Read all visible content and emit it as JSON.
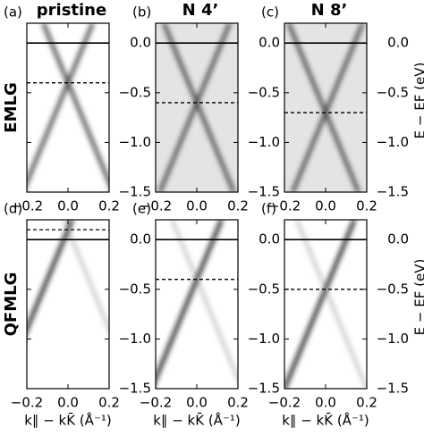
{
  "chart_data": [
    {
      "type": "arpes",
      "panel_label": "(a)",
      "title": "pristine",
      "row_label": "EMLG",
      "background": "#ffffff",
      "xlim": [
        -0.2,
        0.2
      ],
      "ylim": [
        -1.5,
        0.2
      ],
      "xticks": [
        {
          "value": -0.2,
          "label": "−0.2"
        },
        {
          "value": 0,
          "label": "0.0"
        },
        {
          "value": 0.2,
          "label": "0.2"
        }
      ],
      "yticks": [
        {
          "value": 0,
          "label": "0.0"
        },
        {
          "value": -0.5,
          "label": "−0.5"
        },
        {
          "value": -1,
          "label": "−1.0"
        },
        {
          "value": -1.5,
          "label": "−1.5"
        }
      ],
      "fermi_level": 0,
      "dirac_point": -0.4
    },
    {
      "type": "arpes",
      "panel_label": "(b)",
      "title": "N 4’",
      "background": "#e4e4e4",
      "xlim": [
        -0.2,
        0.2
      ],
      "ylim": [
        -1.5,
        0.2
      ],
      "xticks": [
        {
          "value": -0.2,
          "label": "−0.2"
        },
        {
          "value": 0,
          "label": "0.0"
        },
        {
          "value": 0.2,
          "label": "0.2"
        }
      ],
      "yticks": [
        {
          "value": 0,
          "label": "0.0"
        },
        {
          "value": -0.5,
          "label": "−0.5"
        },
        {
          "value": -1,
          "label": "−1.0"
        },
        {
          "value": -1.5,
          "label": "−1.5"
        }
      ],
      "fermi_level": 0,
      "dirac_point": -0.6
    },
    {
      "type": "arpes",
      "panel_label": "(c)",
      "title": "N 8’",
      "ylabel": "E − EF (eV)",
      "background": "#e4e4e4",
      "xlim": [
        -0.2,
        0.2
      ],
      "ylim": [
        -1.5,
        0.2
      ],
      "xticks": [
        {
          "value": -0.2,
          "label": "−0.2"
        },
        {
          "value": 0,
          "label": "0.0"
        },
        {
          "value": 0.2,
          "label": "0.2"
        }
      ],
      "yticks": [
        {
          "value": 0,
          "label": "0.0"
        },
        {
          "value": -0.5,
          "label": "−0.5"
        },
        {
          "value": -1,
          "label": "−1.0"
        },
        {
          "value": -1.5,
          "label": "−1.5"
        }
      ],
      "fermi_level": 0,
      "dirac_point": -0.7
    },
    {
      "type": "arpes",
      "panel_label": "(d)",
      "row_label": "QFMLG",
      "xlabel": "k∥ − kK̄ (Å⁻¹)",
      "background": "#ffffff",
      "xlim": [
        -0.2,
        0.2
      ],
      "ylim": [
        -1.5,
        0.2
      ],
      "xticks": [
        {
          "value": -0.2,
          "label": "−0.2"
        },
        {
          "value": 0,
          "label": "0.0"
        },
        {
          "value": 0.2,
          "label": "0.2"
        }
      ],
      "yticks": [
        {
          "value": 0,
          "label": "0.0"
        },
        {
          "value": -0.5,
          "label": "−0.5"
        },
        {
          "value": -1,
          "label": "−1.0"
        },
        {
          "value": -1.5,
          "label": "−1.5"
        }
      ],
      "fermi_level": 0,
      "dirac_point": 0.1
    },
    {
      "type": "arpes",
      "panel_label": "(e)",
      "xlabel": "k∥ − kK̄ (Å⁻¹)",
      "background": "#ffffff",
      "xlim": [
        -0.2,
        0.2
      ],
      "ylim": [
        -1.5,
        0.2
      ],
      "xticks": [
        {
          "value": -0.2,
          "label": "−0.2"
        },
        {
          "value": 0,
          "label": "0.0"
        },
        {
          "value": 0.2,
          "label": "0.2"
        }
      ],
      "yticks": [
        {
          "value": 0,
          "label": "0.0"
        },
        {
          "value": -0.5,
          "label": "−0.5"
        },
        {
          "value": -1,
          "label": "−1.0"
        },
        {
          "value": -1.5,
          "label": "−1.5"
        }
      ],
      "fermi_level": 0,
      "dirac_point": -0.4
    },
    {
      "type": "arpes",
      "panel_label": "(f)",
      "xlabel": "k∥ − kK̄ (Å⁻¹)",
      "ylabel": "E − EF (eV)",
      "background": "#ffffff",
      "xlim": [
        -0.2,
        0.2
      ],
      "ylim": [
        -1.5,
        0.2
      ],
      "xticks": [
        {
          "value": -0.2,
          "label": "−0.2"
        },
        {
          "value": 0,
          "label": "0.0"
        },
        {
          "value": 0.2,
          "label": "0.2"
        }
      ],
      "yticks": [
        {
          "value": 0,
          "label": "0.0"
        },
        {
          "value": -0.5,
          "label": "−0.5"
        },
        {
          "value": -1,
          "label": "−1.0"
        },
        {
          "value": -1.5,
          "label": "−1.5"
        }
      ],
      "fermi_level": 0,
      "dirac_point": -0.5
    }
  ]
}
